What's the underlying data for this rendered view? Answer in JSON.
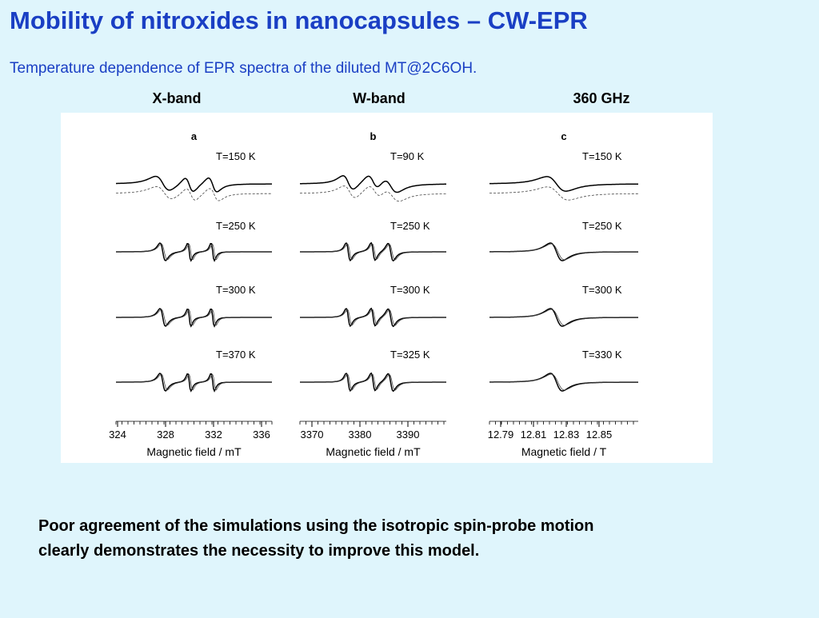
{
  "title": "Mobility of nitroxides in nanocapsules – CW-EPR",
  "subtitle": "Temperature dependence of EPR spectra  of the diluted MT@2C6OH.",
  "band_labels": [
    "X-band",
    "W-band",
    "360 GHz"
  ],
  "figure": {
    "panels": [
      {
        "label": "a",
        "temperatures": [
          "T=150 K",
          "T=250 K",
          "T=300 K",
          "T=370 K"
        ],
        "ticks": [
          "324",
          "328",
          "332",
          "336"
        ],
        "axis_label": "Magnetic field / mT"
      },
      {
        "label": "b",
        "temperatures": [
          "T=90 K",
          "T=250 K",
          "T=300 K",
          "T=325 K"
        ],
        "ticks": [
          "3370",
          "3380",
          "3390"
        ],
        "axis_label": "Magnetic field / mT"
      },
      {
        "label": "c",
        "temperatures": [
          "T=150 K",
          "T=250 K",
          "T=300 K",
          "T=330 K"
        ],
        "ticks": [
          "12.79",
          "12.81",
          "12.83",
          "12.85"
        ],
        "axis_label": "Magnetic field / T"
      }
    ]
  },
  "conclusion": [
    "Poor agreement of the simulations using the isotropic spin-probe motion",
    "clearly demonstrates the necessity to improve this model."
  ]
}
